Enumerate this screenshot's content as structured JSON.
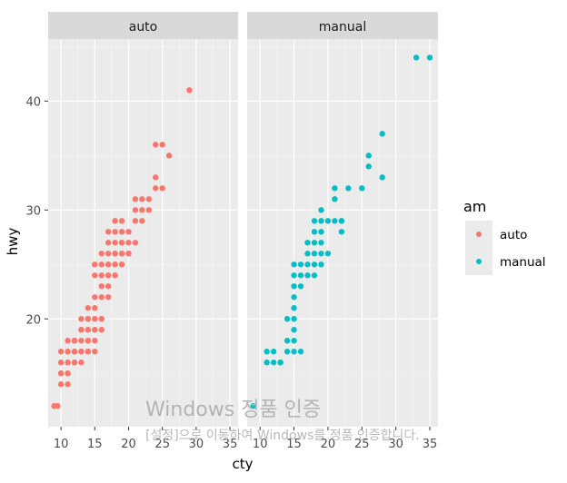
{
  "chart_data": {
    "type": "scatter",
    "xlabel": "cty",
    "ylabel": "hwy",
    "xlim": [
      8.1,
      36.2
    ],
    "ylim": [
      10.1,
      45.7
    ],
    "x_ticks": [
      10,
      15,
      20,
      25,
      30,
      35
    ],
    "y_ticks": [
      20,
      30,
      40
    ],
    "facet_variable": "am",
    "grid": true,
    "legend": {
      "title": "am",
      "placement": "right",
      "entries": [
        {
          "label": "auto",
          "color": "#F8766D"
        },
        {
          "label": "manual",
          "color": "#00BFC4"
        }
      ]
    },
    "panels": [
      {
        "label": "auto",
        "color": "#F8766D",
        "points": [
          [
            9,
            12
          ],
          [
            9,
            12
          ],
          [
            9.5,
            12
          ],
          [
            10,
            15
          ],
          [
            10,
            14
          ],
          [
            10,
            15
          ],
          [
            10,
            16
          ],
          [
            10,
            17
          ],
          [
            11,
            14
          ],
          [
            11,
            15
          ],
          [
            11,
            16
          ],
          [
            11,
            17
          ],
          [
            11,
            15
          ],
          [
            11,
            17
          ],
          [
            11,
            18
          ],
          [
            11,
            16
          ],
          [
            12,
            17
          ],
          [
            12,
            16
          ],
          [
            12,
            18
          ],
          [
            12,
            16
          ],
          [
            12,
            17
          ],
          [
            12,
            18
          ],
          [
            12,
            17
          ],
          [
            12,
            18
          ],
          [
            13,
            17
          ],
          [
            13,
            18
          ],
          [
            13,
            19
          ],
          [
            13,
            17
          ],
          [
            13,
            16
          ],
          [
            13,
            17
          ],
          [
            13,
            19
          ],
          [
            13,
            20
          ],
          [
            14,
            17
          ],
          [
            14,
            18
          ],
          [
            14,
            19
          ],
          [
            14,
            20
          ],
          [
            14,
            17
          ],
          [
            14,
            18
          ],
          [
            14,
            19
          ],
          [
            14,
            20
          ],
          [
            14,
            21
          ],
          [
            14,
            17
          ],
          [
            15,
            17
          ],
          [
            15,
            19
          ],
          [
            15,
            18
          ],
          [
            15,
            20
          ],
          [
            15,
            21
          ],
          [
            15,
            22
          ],
          [
            15,
            25
          ],
          [
            15,
            24
          ],
          [
            15,
            19
          ],
          [
            15,
            20
          ],
          [
            16,
            20
          ],
          [
            16,
            19
          ],
          [
            16,
            22
          ],
          [
            16,
            23
          ],
          [
            16,
            24
          ],
          [
            16,
            25
          ],
          [
            16,
            26
          ],
          [
            16,
            20
          ],
          [
            17,
            22
          ],
          [
            17,
            23
          ],
          [
            17,
            24
          ],
          [
            17,
            25
          ],
          [
            17,
            26
          ],
          [
            17,
            27
          ],
          [
            17,
            28
          ],
          [
            17,
            25
          ],
          [
            17,
            24
          ],
          [
            18,
            24
          ],
          [
            18,
            25
          ],
          [
            18,
            26
          ],
          [
            18,
            27
          ],
          [
            18,
            28
          ],
          [
            18,
            29
          ],
          [
            18,
            26
          ],
          [
            18,
            25
          ],
          [
            18,
            24
          ],
          [
            19,
            25
          ],
          [
            19,
            26
          ],
          [
            19,
            27
          ],
          [
            19,
            28
          ],
          [
            19,
            29
          ],
          [
            19,
            27
          ],
          [
            19,
            26
          ],
          [
            19,
            25
          ],
          [
            20,
            26
          ],
          [
            20,
            27
          ],
          [
            20,
            28
          ],
          [
            20,
            26
          ],
          [
            21,
            27
          ],
          [
            21,
            29
          ],
          [
            21,
            30
          ],
          [
            21,
            31
          ],
          [
            22,
            29
          ],
          [
            22,
            30
          ],
          [
            22,
            31
          ],
          [
            23,
            30
          ],
          [
            23,
            31
          ],
          [
            24,
            32
          ],
          [
            24,
            33
          ],
          [
            24,
            36
          ],
          [
            25,
            32
          ],
          [
            25,
            36
          ],
          [
            26,
            35
          ],
          [
            29,
            41
          ]
        ]
      },
      {
        "label": "manual",
        "color": "#00BFC4",
        "points": [
          [
            9,
            12
          ],
          [
            11,
            17
          ],
          [
            11,
            16
          ],
          [
            12,
            16
          ],
          [
            12,
            17
          ],
          [
            13,
            16
          ],
          [
            13,
            16
          ],
          [
            14,
            20
          ],
          [
            14,
            17
          ],
          [
            14,
            18
          ],
          [
            15,
            17
          ],
          [
            15,
            18
          ],
          [
            15,
            19
          ],
          [
            15,
            20
          ],
          [
            15,
            21
          ],
          [
            15,
            22
          ],
          [
            15,
            23
          ],
          [
            15,
            24
          ],
          [
            15,
            25
          ],
          [
            16,
            17
          ],
          [
            16,
            23
          ],
          [
            16,
            24
          ],
          [
            16,
            25
          ],
          [
            17,
            24
          ],
          [
            17,
            25
          ],
          [
            17,
            26
          ],
          [
            17,
            27
          ],
          [
            18,
            24
          ],
          [
            18,
            25
          ],
          [
            18,
            26
          ],
          [
            18,
            27
          ],
          [
            18,
            28
          ],
          [
            18,
            29
          ],
          [
            19,
            25
          ],
          [
            19,
            26
          ],
          [
            19,
            27
          ],
          [
            19,
            28
          ],
          [
            19,
            29
          ],
          [
            19,
            30
          ],
          [
            20,
            26
          ],
          [
            20,
            29
          ],
          [
            21,
            29
          ],
          [
            21,
            31
          ],
          [
            21,
            32
          ],
          [
            22,
            28
          ],
          [
            22,
            29
          ],
          [
            22,
            29
          ],
          [
            23,
            32
          ],
          [
            25,
            32
          ],
          [
            26,
            35
          ],
          [
            26,
            34
          ],
          [
            28,
            33
          ],
          [
            28,
            37
          ],
          [
            33,
            44
          ],
          [
            35,
            44
          ]
        ]
      }
    ]
  },
  "watermark": {
    "title": "Windows 정품 인증",
    "subtitle": "[설정]으로 이동하여 Windows를 정품 인증합니다."
  }
}
